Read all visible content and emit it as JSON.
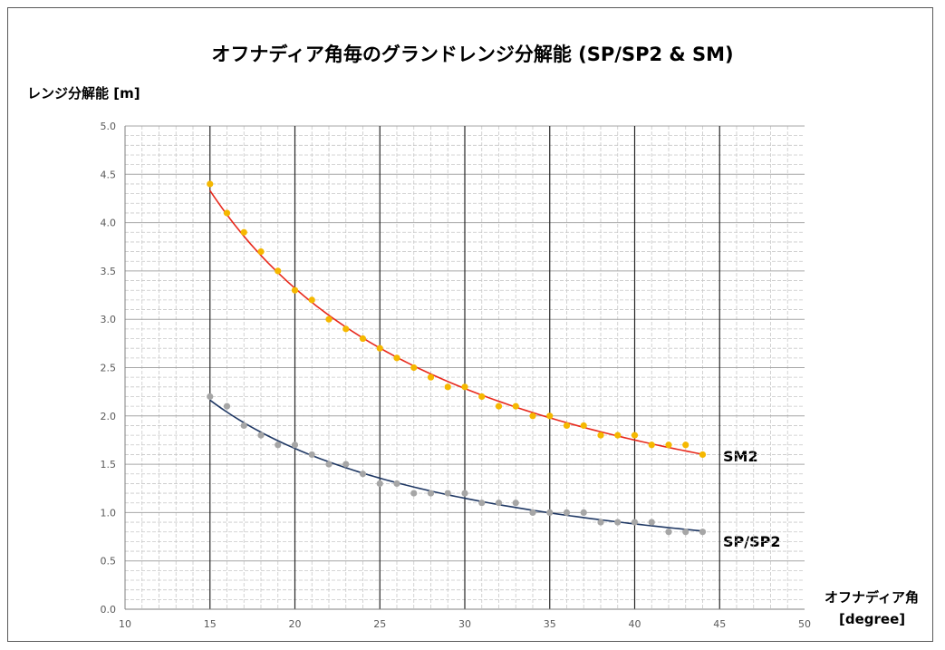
{
  "chart_data": {
    "type": "scatter",
    "title": "オフナディア角毎のグランドレンジ分解能 (SP/SP2 & SM)",
    "ylabel": "レンジ分解能 [m]",
    "xlabel": "オフナディア角",
    "xunit": "[degree]",
    "xlim": [
      10,
      50
    ],
    "ylim": [
      0,
      5.0
    ],
    "x_ticks": [
      10,
      15,
      20,
      25,
      30,
      35,
      40,
      45,
      50
    ],
    "y_ticks": [
      "0.0",
      "0.5",
      "1.0",
      "1.5",
      "2.0",
      "2.5",
      "3.0",
      "3.5",
      "4.0",
      "4.5",
      "5.0"
    ],
    "grid": true,
    "series": [
      {
        "name": "SM2",
        "marker_color": "#f5b800",
        "trend_color": "#e8291c",
        "x": [
          15,
          16,
          17,
          18,
          19,
          20,
          21,
          22,
          23,
          24,
          25,
          26,
          27,
          28,
          29,
          30,
          31,
          32,
          33,
          34,
          35,
          36,
          37,
          38,
          39,
          40,
          41,
          42,
          43,
          44
        ],
        "y": [
          4.4,
          4.1,
          3.9,
          3.7,
          3.5,
          3.3,
          3.2,
          3.0,
          2.9,
          2.8,
          2.7,
          2.6,
          2.5,
          2.4,
          2.3,
          2.3,
          2.2,
          2.1,
          2.1,
          2.0,
          2.0,
          1.9,
          1.9,
          1.8,
          1.8,
          1.8,
          1.7,
          1.7,
          1.7,
          1.6
        ]
      },
      {
        "name": "SP/SP2",
        "marker_color": "#a6a6a6",
        "trend_color": "#1f3864",
        "x": [
          15,
          16,
          17,
          18,
          19,
          20,
          21,
          22,
          23,
          24,
          25,
          26,
          27,
          28,
          29,
          30,
          31,
          32,
          33,
          34,
          35,
          36,
          37,
          38,
          39,
          40,
          41,
          42,
          43,
          44
        ],
        "y": [
          2.2,
          2.1,
          1.9,
          1.8,
          1.7,
          1.7,
          1.6,
          1.5,
          1.5,
          1.4,
          1.3,
          1.3,
          1.2,
          1.2,
          1.2,
          1.2,
          1.1,
          1.1,
          1.1,
          1.0,
          1.0,
          1.0,
          1.0,
          0.9,
          0.9,
          0.9,
          0.9,
          0.8,
          0.8,
          0.8
        ]
      }
    ]
  }
}
